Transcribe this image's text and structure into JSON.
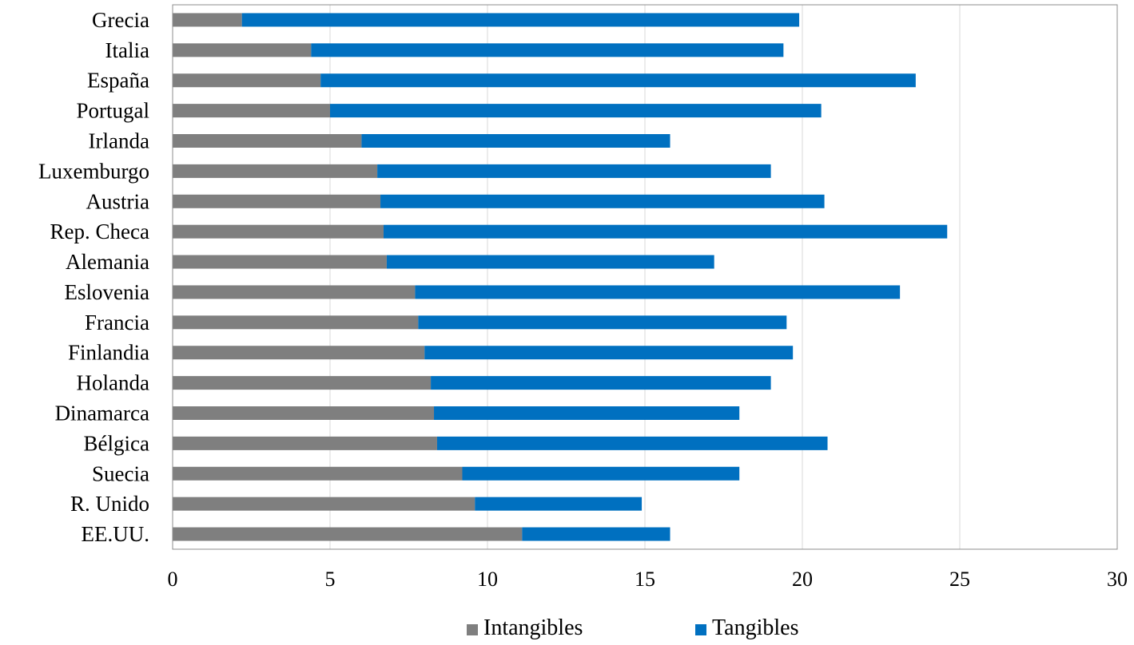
{
  "chart_data": {
    "type": "bar",
    "orientation": "horizontal",
    "stacked": true,
    "title": "",
    "xlabel": "",
    "ylabel": "",
    "xlim": [
      0,
      30
    ],
    "x_ticks": [
      0,
      5,
      10,
      15,
      20,
      25,
      30
    ],
    "grid": "vertical",
    "legend_position": "bottom",
    "categories": [
      "Grecia",
      "Italia",
      "España",
      "Portugal",
      "Irlanda",
      "Luxemburgo",
      "Austria",
      "Rep. Checa",
      "Alemania",
      "Eslovenia",
      "Francia",
      "Finlandia",
      "Holanda",
      "Dinamarca",
      "Bélgica",
      "Suecia",
      "R. Unido",
      "EE.UU."
    ],
    "series": [
      {
        "name": "Intangibles",
        "color": "#7f7f7f",
        "values": [
          2.2,
          4.4,
          4.7,
          5.0,
          6.0,
          6.5,
          6.6,
          6.7,
          6.8,
          7.7,
          7.8,
          8.0,
          8.2,
          8.3,
          8.4,
          9.2,
          9.6,
          11.1
        ]
      },
      {
        "name": "Tangibles",
        "color": "#0070c0",
        "values": [
          17.7,
          15.0,
          18.9,
          15.6,
          9.8,
          12.5,
          14.1,
          17.9,
          10.4,
          15.4,
          11.7,
          11.7,
          10.8,
          9.7,
          12.4,
          8.8,
          5.3,
          4.7
        ]
      }
    ]
  }
}
